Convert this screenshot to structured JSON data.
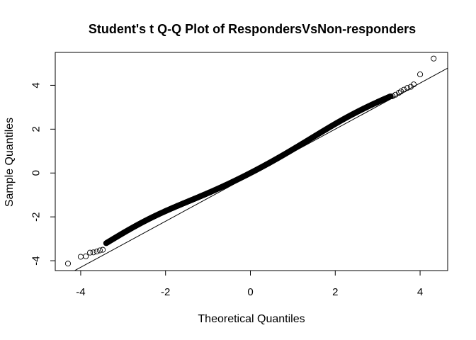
{
  "chart_data": {
    "type": "scatter",
    "title": "Student's t Q-Q Plot of RespondersVsNon-responders",
    "xlabel": "Theoretical Quantiles",
    "ylabel": "Sample Quantiles",
    "xlim": [
      -4.6,
      4.65
    ],
    "ylim": [
      -4.45,
      5.5
    ],
    "xticks": [
      "-4",
      "-2",
      "0",
      "2",
      "4"
    ],
    "yticks": [
      "-4",
      "-2",
      "0",
      "2",
      "4"
    ],
    "grid": false,
    "legend": "none",
    "reference_line": {
      "slope": 1.05,
      "intercept": -0.1
    },
    "curve_note_visible": false,
    "points": {
      "tail_low": [
        [
          -4.3,
          -4.13
        ],
        [
          -4.0,
          -3.82
        ],
        [
          -3.88,
          -3.8
        ],
        [
          -3.78,
          -3.63
        ],
        [
          -3.7,
          -3.62
        ],
        [
          -3.62,
          -3.58
        ],
        [
          -3.55,
          -3.53
        ],
        [
          -3.48,
          -3.5
        ]
      ],
      "body_range": [
        -3.4,
        3.3
      ],
      "tail_high": [
        [
          3.35,
          3.5
        ],
        [
          3.42,
          3.57
        ],
        [
          3.5,
          3.66
        ],
        [
          3.55,
          3.72
        ],
        [
          3.62,
          3.8
        ],
        [
          3.7,
          3.88
        ],
        [
          3.78,
          3.93
        ],
        [
          3.85,
          4.04
        ],
        [
          4.0,
          4.5
        ],
        [
          4.32,
          5.22
        ]
      ]
    },
    "colors": {
      "points": "#000000",
      "line": "#000000",
      "frame": "#000000"
    }
  }
}
